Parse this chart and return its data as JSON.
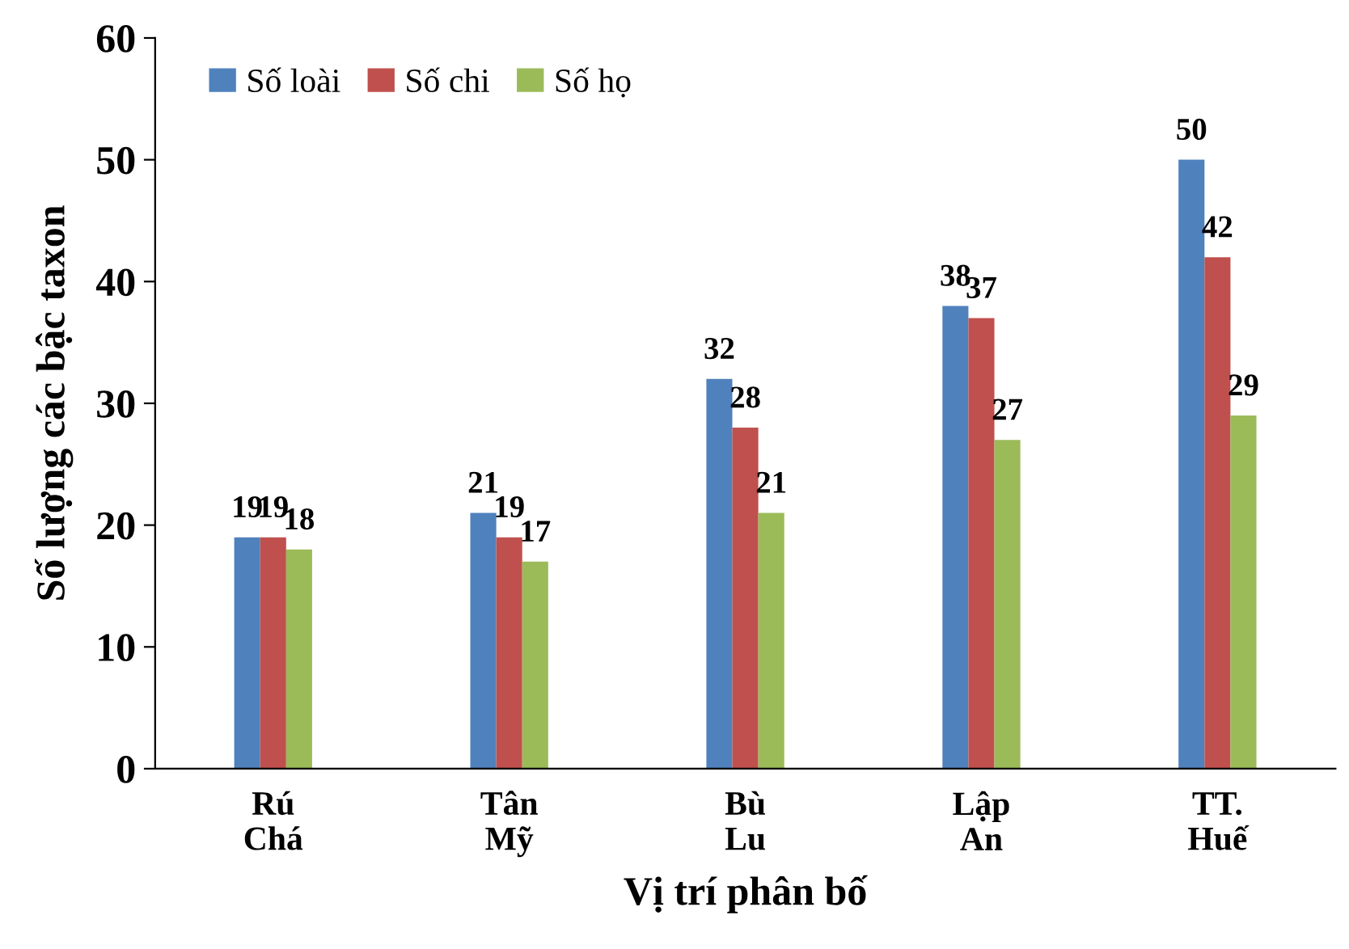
{
  "chart_data": {
    "type": "bar",
    "xlabel": "Vị trí phân bố",
    "ylabel": "Số lượng các bậc taxon",
    "categories": [
      "Rú\nChá",
      "Tân\nMỹ",
      "Bù\nLu",
      "Lập\nAn",
      "TT.\nHuế"
    ],
    "series": [
      {
        "name": "Số loài",
        "color": "#4f81bd",
        "values": [
          19,
          21,
          32,
          38,
          50
        ]
      },
      {
        "name": "Số chi",
        "color": "#c0504d",
        "values": [
          19,
          19,
          28,
          37,
          42
        ]
      },
      {
        "name": "Số họ",
        "color": "#9bbb59",
        "values": [
          18,
          17,
          21,
          27,
          29
        ]
      }
    ],
    "ylim": [
      0,
      60
    ],
    "yticks": [
      0,
      10,
      20,
      30,
      40,
      50,
      60
    ],
    "data_labels": true,
    "legend": "top left",
    "grid": false
  }
}
